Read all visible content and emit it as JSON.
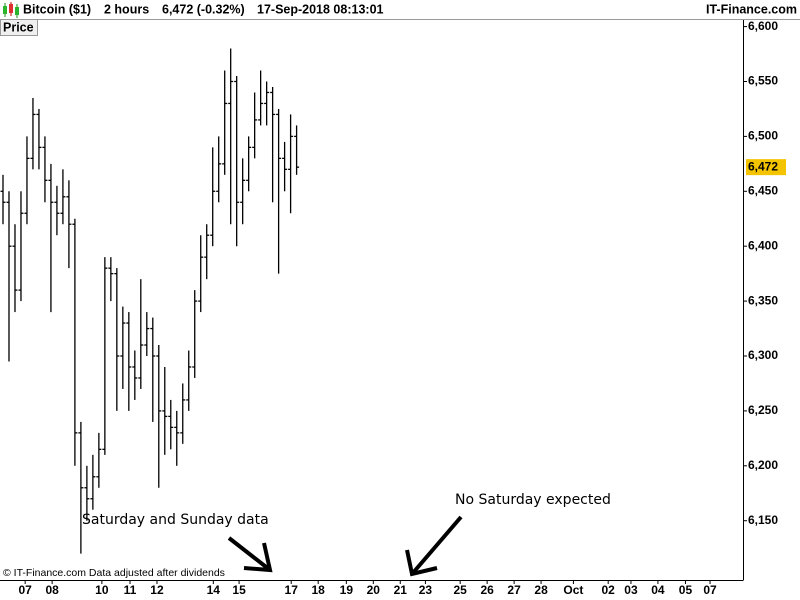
{
  "chart_data": {
    "type": "ohlc",
    "header": {
      "instrument": "Bitcoin ($1)",
      "period": "2 hours",
      "quote": "6,472 (-0.32%)",
      "timestamp": "17-Sep-2018 08:13:01",
      "brand": "IT-Finance.com"
    },
    "y_label": "Price",
    "footer": "© IT-Finance.com  Data adjusted after dividends",
    "annotations": [
      "Saturday and Sunday data",
      "No Saturday expected"
    ],
    "color": "#000000",
    "last_label": "6,472",
    "last_label_color": "#f5c400",
    "x": [
      0,
      1,
      2,
      3,
      4,
      5,
      6,
      7,
      8,
      9,
      10,
      11,
      12,
      13,
      14,
      15,
      16,
      17,
      18,
      19,
      20,
      21,
      22,
      23,
      24,
      25,
      26,
      27,
      28,
      29,
      30,
      31,
      32,
      33,
      34,
      35,
      36,
      37,
      38,
      39,
      40,
      41,
      42,
      43,
      44,
      45,
      46,
      47,
      48,
      49
    ],
    "open": [
      6450,
      6440,
      6400,
      6360,
      6430,
      6480,
      6520,
      6490,
      6460,
      6440,
      6430,
      6445,
      6420,
      6230,
      6180,
      6170,
      6190,
      6215,
      6380,
      6375,
      6300,
      6330,
      6290,
      6280,
      6310,
      6325,
      6300,
      6250,
      6245,
      6235,
      6230,
      6260,
      6290,
      6350,
      6390,
      6410,
      6450,
      6475,
      6530,
      6550,
      6440,
      6460,
      6490,
      6515,
      6530,
      6540,
      6520,
      6480,
      6470,
      6500
    ],
    "high": [
      6465,
      6450,
      6420,
      6450,
      6500,
      6535,
      6525,
      6500,
      6475,
      6455,
      6470,
      6460,
      6425,
      6240,
      6200,
      6210,
      6230,
      6390,
      6390,
      6380,
      6345,
      6340,
      6305,
      6370,
      6340,
      6335,
      6310,
      6290,
      6260,
      6250,
      6275,
      6305,
      6360,
      6410,
      6420,
      6490,
      6500,
      6560,
      6580,
      6555,
      6480,
      6500,
      6540,
      6560,
      6550,
      6545,
      6525,
      6495,
      6520,
      6510
    ],
    "low": [
      6420,
      6295,
      6340,
      6350,
      6420,
      6470,
      6470,
      6440,
      6340,
      6410,
      6420,
      6380,
      6200,
      6120,
      6150,
      6160,
      6180,
      6210,
      6350,
      6250,
      6270,
      6250,
      6260,
      6270,
      6300,
      6240,
      6180,
      6210,
      6215,
      6200,
      6220,
      6250,
      6280,
      6340,
      6370,
      6400,
      6440,
      6465,
      6420,
      6400,
      6420,
      6450,
      6480,
      6510,
      6510,
      6440,
      6375,
      6450,
      6430,
      6465
    ],
    "close": [
      6440,
      6400,
      6360,
      6430,
      6480,
      6520,
      6490,
      6460,
      6440,
      6430,
      6445,
      6420,
      6230,
      6180,
      6170,
      6190,
      6215,
      6380,
      6375,
      6300,
      6330,
      6290,
      6280,
      6310,
      6325,
      6300,
      6250,
      6245,
      6235,
      6230,
      6260,
      6290,
      6350,
      6390,
      6410,
      6450,
      6475,
      6530,
      6550,
      6440,
      6460,
      6490,
      6515,
      6530,
      6540,
      6520,
      6480,
      6470,
      6500,
      6472
    ],
    "xlim": [
      -0.5,
      123.5
    ],
    "xticks": [
      {
        "value": 3.7,
        "label": "07"
      },
      {
        "value": 8.2,
        "label": "08"
      },
      {
        "value": 16.5,
        "label": "10"
      },
      {
        "value": 21.2,
        "label": "11"
      },
      {
        "value": 25.7,
        "label": "12"
      },
      {
        "value": 35.1,
        "label": "14"
      },
      {
        "value": 39.4,
        "label": "15"
      },
      {
        "value": 48.1,
        "label": "17"
      },
      {
        "value": 52.6,
        "label": "18"
      },
      {
        "value": 57.3,
        "label": "19"
      },
      {
        "value": 61.8,
        "label": "20"
      },
      {
        "value": 66.3,
        "label": "21"
      },
      {
        "value": 70.5,
        "label": "23"
      },
      {
        "value": 76.3,
        "label": "25"
      },
      {
        "value": 80.8,
        "label": "26"
      },
      {
        "value": 85.3,
        "label": "27"
      },
      {
        "value": 89.8,
        "label": "28"
      },
      {
        "value": 95.2,
        "label": "Oct"
      },
      {
        "value": 101,
        "label": "02"
      },
      {
        "value": 104.8,
        "label": "03"
      },
      {
        "value": 109.3,
        "label": "04"
      },
      {
        "value": 113.9,
        "label": "05"
      },
      {
        "value": 118,
        "label": "07"
      }
    ],
    "ylim": [
      6096,
      6606
    ],
    "yticks": [
      {
        "value": 6150,
        "label": "6,150"
      },
      {
        "value": 6200,
        "label": "6,200"
      },
      {
        "value": 6250,
        "label": "6,250"
      },
      {
        "value": 6300,
        "label": "6,300"
      },
      {
        "value": 6350,
        "label": "6,350"
      },
      {
        "value": 6400,
        "label": "6,400"
      },
      {
        "value": 6450,
        "label": "6,450"
      },
      {
        "value": 6500,
        "label": "6,500"
      },
      {
        "value": 6550,
        "label": "6,550"
      },
      {
        "value": 6600,
        "label": "6,600"
      }
    ],
    "grid": false
  }
}
